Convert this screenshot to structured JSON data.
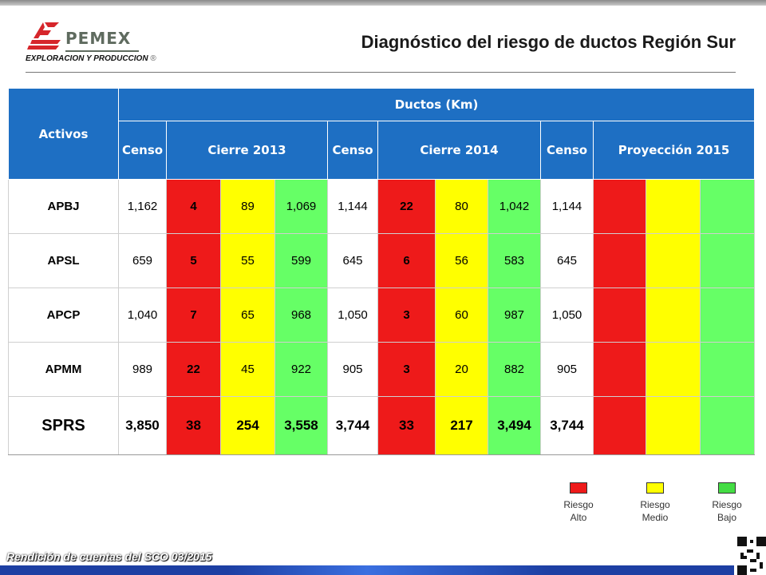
{
  "header": {
    "brand": "PEMEX",
    "tagline": "EXPLORACION Y PRODUCCION",
    "registered_mark": "®",
    "title": "Diagnóstico del riesgo de ductos Región Sur"
  },
  "table": {
    "corner_label": "Activos",
    "group_label": "Ductos (Km)",
    "column_groups": [
      "Censo",
      "Cierre 2013",
      "Censo",
      "Cierre 2014",
      "Censo",
      "Proyección 2015"
    ],
    "rows": [
      {
        "asset": "APBJ",
        "censo_2013": "1,162",
        "alto_2013": "4",
        "medio_2013": "89",
        "bajo_2013": "1,069",
        "censo_2014": "1,144",
        "alto_2014": "22",
        "medio_2014": "80",
        "bajo_2014": "1,042",
        "censo_2015": "1,144"
      },
      {
        "asset": "APSL",
        "censo_2013": "659",
        "alto_2013": "5",
        "medio_2013": "55",
        "bajo_2013": "599",
        "censo_2014": "645",
        "alto_2014": "6",
        "medio_2014": "56",
        "bajo_2014": "583",
        "censo_2015": "645"
      },
      {
        "asset": "APCP",
        "censo_2013": "1,040",
        "alto_2013": "7",
        "medio_2013": "65",
        "bajo_2013": "968",
        "censo_2014": "1,050",
        "alto_2014": "3",
        "medio_2014": "60",
        "bajo_2014": "987",
        "censo_2015": "1,050"
      },
      {
        "asset": "APMM",
        "censo_2013": "989",
        "alto_2013": "22",
        "medio_2013": "45",
        "bajo_2013": "922",
        "censo_2014": "905",
        "alto_2014": "3",
        "medio_2014": "20",
        "bajo_2014": "882",
        "censo_2015": "905"
      }
    ],
    "total": {
      "asset": "SPRS",
      "censo_2013": "3,850",
      "alto_2013": "38",
      "medio_2013": "254",
      "bajo_2013": "3,558",
      "censo_2014": "3,744",
      "alto_2014": "33",
      "medio_2014": "217",
      "bajo_2014": "3,494",
      "censo_2015": "3,744"
    }
  },
  "legend": {
    "high": {
      "line1": "Riesgo",
      "line2": "Alto",
      "color": "#ee1a1a"
    },
    "medium": {
      "line1": "Riesgo",
      "line2": "Medio",
      "color": "#ffff00"
    },
    "low": {
      "line1": "Riesgo",
      "line2": "Bajo",
      "color": "#44dd44"
    }
  },
  "footer": {
    "text": "Rendición de cuentas del SCO 03/2015"
  },
  "colors": {
    "header_blue": "#1e6fc3",
    "risk_high": "#ee1a1a",
    "risk_medium": "#ffff00",
    "risk_low": "#66ff66",
    "brand_red": "#d6262b"
  }
}
